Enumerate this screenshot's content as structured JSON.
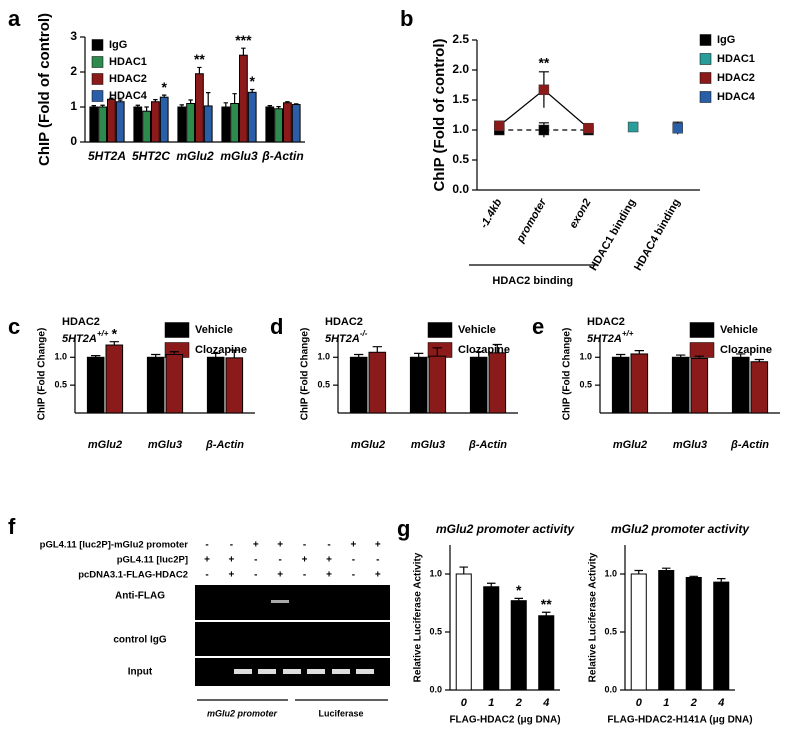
{
  "chart_data": [
    {
      "panel": "a",
      "type": "bar",
      "ylabel": "ChIP (Fold of control)",
      "categories": [
        "5HT2A",
        "5HT2C",
        "mGlu2",
        "mGlu3",
        "β-Actin"
      ],
      "ylim": [
        0,
        3
      ],
      "yticks": [
        0,
        1,
        2,
        3
      ],
      "legend": "upper left",
      "series": [
        {
          "name": "IgG",
          "color": "#000000",
          "values": [
            1.0,
            1.0,
            1.0,
            1.0,
            1.0
          ],
          "errors": [
            0.04,
            0.05,
            0.06,
            0.12,
            0.04
          ]
        },
        {
          "name": "HDAC1",
          "color": "#2e8b4e",
          "values": [
            1.0,
            0.88,
            1.1,
            1.1,
            0.95
          ],
          "errors": [
            0.05,
            0.12,
            0.1,
            0.28,
            0.06
          ]
        },
        {
          "name": "HDAC2",
          "color": "#8b1a1a",
          "values": [
            1.22,
            1.15,
            1.95,
            2.48,
            1.12
          ],
          "errors": [
            0.03,
            0.06,
            0.18,
            0.2,
            0.03
          ],
          "annotations": [
            null,
            null,
            "**",
            "***",
            null
          ]
        },
        {
          "name": "HDAC4",
          "color": "#2a5fa8",
          "values": [
            1.15,
            1.28,
            1.03,
            1.42,
            1.07
          ],
          "errors": [
            0.05,
            0.06,
            0.38,
            0.08,
            0.02
          ],
          "annotations": [
            null,
            "*",
            null,
            "*",
            null
          ]
        }
      ]
    },
    {
      "panel": "b",
      "type": "line",
      "ylabel": "ChIP (Fold of control)",
      "categories": [
        "-1.4kb",
        "promoter",
        "exon2",
        "HDAC1 binding",
        "HDAC4 binding"
      ],
      "group_label": "HDAC2 binding",
      "ylim": [
        0,
        2.5
      ],
      "yticks": [
        {
          "value": 0,
          "label": "0.0"
        },
        0.5,
        {
          "value": 1,
          "label": "1.0"
        },
        1.5,
        {
          "value": 2,
          "label": "2.0"
        },
        2.5
      ],
      "legend": "upper right",
      "series": [
        {
          "name": "IgG",
          "color": "#000000",
          "dashed": true,
          "values": [
            1.0,
            1.0,
            1.0,
            null,
            null
          ],
          "errors": [
            0.04,
            0.12,
            0.04,
            null,
            null
          ]
        },
        {
          "name": "HDAC1",
          "color": "#2a9d9a",
          "values": [
            null,
            null,
            null,
            1.05,
            null
          ],
          "errors": [
            null,
            null,
            null,
            0.05,
            null
          ]
        },
        {
          "name": "HDAC2",
          "color": "#8b1a1a",
          "values": [
            1.07,
            1.67,
            1.03,
            null,
            null
          ],
          "errors": [
            0.04,
            0.3,
            0.04,
            null,
            null
          ],
          "annotations": [
            null,
            "**",
            null,
            null,
            null
          ]
        },
        {
          "name": "HDAC4",
          "color": "#2a5fa8",
          "values": [
            null,
            null,
            null,
            null,
            1.03
          ],
          "errors": [
            null,
            null,
            null,
            null,
            0.1
          ]
        }
      ]
    },
    {
      "panel": "c",
      "type": "bar",
      "title": "HDAC2",
      "subtitle": "5HT2A",
      "genotype": "+/+",
      "ylabel": "ChIP (Fold Change)",
      "categories": [
        "mGlu2",
        "mGlu3",
        "β-Actin"
      ],
      "ylim": [
        0,
        1.4
      ],
      "yticks": [
        0.5,
        {
          "value": 1,
          "label": "1.0"
        }
      ],
      "legend": "upper right",
      "series": [
        {
          "name": "Vehicle",
          "color": "#000000",
          "values": [
            1.0,
            1.0,
            1.0
          ],
          "errors": [
            0.03,
            0.05,
            0.07
          ]
        },
        {
          "name": "Clozapine",
          "color": "#8b1a1a",
          "values": [
            1.22,
            1.05,
            0.99
          ],
          "errors": [
            0.06,
            0.05,
            0.14
          ],
          "annotations": [
            "*",
            null,
            null
          ]
        }
      ]
    },
    {
      "panel": "d",
      "type": "bar",
      "title": "HDAC2",
      "subtitle": "5HT2A",
      "genotype": "-/-",
      "ylabel": "ChIP (Fold Change)",
      "categories": [
        "mGlu2",
        "mGlu3",
        "β-Actin"
      ],
      "ylim": [
        0,
        1.4
      ],
      "yticks": [
        0.5,
        {
          "value": 1,
          "label": "1.0"
        }
      ],
      "legend": "upper right",
      "series": [
        {
          "name": "Vehicle",
          "color": "#000000",
          "values": [
            1.0,
            1.0,
            1.0
          ],
          "errors": [
            0.05,
            0.07,
            0.1
          ]
        },
        {
          "name": "Clozapine",
          "color": "#8b1a1a",
          "values": [
            1.09,
            1.02,
            1.08
          ],
          "errors": [
            0.1,
            0.15,
            0.15
          ]
        }
      ]
    },
    {
      "panel": "e",
      "type": "bar",
      "title": "HDAC2",
      "subtitle": "5HT2A",
      "genotype": "+/+",
      "ylabel": "ChIP (Fold Change)",
      "categories": [
        "mGlu2",
        "mGlu3",
        "β-Actin"
      ],
      "ylim": [
        0,
        1.4
      ],
      "yticks": [
        0.5,
        {
          "value": 1,
          "label": "1.0"
        }
      ],
      "legend": "upper right",
      "series": [
        {
          "name": "Vehicle",
          "color": "#000000",
          "values": [
            1.0,
            1.0,
            1.0
          ],
          "errors": [
            0.05,
            0.04,
            0.06
          ]
        },
        {
          "name": "Clozapine",
          "color": "#8b1a1a",
          "values": [
            1.06,
            0.98,
            0.92
          ],
          "errors": [
            0.06,
            0.04,
            0.04
          ]
        }
      ]
    },
    {
      "panel": "g",
      "type": "bar",
      "title": "mGlu2 promoter activity",
      "xlabel": "FLAG-HDAC2 (μg DNA)",
      "ylabel": "Relative Luciferase Activity",
      "categories": [
        "0",
        "1",
        "2",
        "4"
      ],
      "ylim": [
        0,
        1.25
      ],
      "yticks": [
        {
          "value": 0,
          "label": "0.0"
        },
        0.5,
        {
          "value": 1,
          "label": "1.0"
        }
      ],
      "series": [
        {
          "colors": [
            "#ffffff",
            "#000000",
            "#000000",
            "#000000"
          ],
          "values": [
            1.0,
            0.89,
            0.77,
            0.64
          ],
          "errors": [
            0.06,
            0.03,
            0.02,
            0.03
          ],
          "annotations": [
            null,
            null,
            "*",
            "**"
          ]
        }
      ]
    },
    {
      "type": "bar",
      "title": "mGlu2 promoter activity",
      "xlabel": "FLAG-HDAC2-H141A (μg DNA)",
      "ylabel": "Relative Luciferase Activity",
      "categories": [
        "0",
        "1",
        "2",
        "4"
      ],
      "ylim": [
        0,
        1.25
      ],
      "yticks": [
        {
          "value": 0,
          "label": "0.0"
        },
        0.5,
        {
          "value": 1,
          "label": "1.0"
        }
      ],
      "series": [
        {
          "colors": [
            "#ffffff",
            "#000000",
            "#000000",
            "#000000"
          ],
          "values": [
            1.0,
            1.03,
            0.97,
            0.93
          ],
          "errors": [
            0.03,
            0.02,
            0.01,
            0.03
          ]
        }
      ]
    }
  ],
  "panel_f": {
    "panel": "f",
    "rows": [
      {
        "label": "pGL4.11 [luc2P]-mGlu2 promoter",
        "signs": [
          "-",
          "-",
          "+",
          "+",
          "-",
          "-",
          "+",
          "+"
        ]
      },
      {
        "label": "pGL4.11 [luc2P]",
        "signs": [
          "+",
          "+",
          "-",
          "-",
          "+",
          "+",
          "-",
          "-"
        ]
      },
      {
        "label": "pcDNA3.1-FLAG-HDAC2",
        "signs": [
          "-",
          "+",
          "-",
          "+",
          "-",
          "+",
          "-",
          "+"
        ]
      }
    ],
    "gel_labels": [
      "Anti-FLAG",
      "control IgG",
      "Input"
    ],
    "groups": [
      "mGlu2 promoter",
      "Luciferase"
    ]
  }
}
